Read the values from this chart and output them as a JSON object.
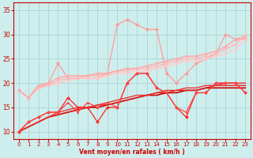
{
  "xlabel": "Vent moyen/en rafales ( km/h )",
  "xlim": [
    -0.5,
    23.5
  ],
  "ylim": [
    8.5,
    36.5
  ],
  "yticks": [
    10,
    15,
    20,
    25,
    30,
    35
  ],
  "xticks": [
    0,
    1,
    2,
    3,
    4,
    5,
    6,
    7,
    8,
    9,
    10,
    11,
    12,
    13,
    14,
    15,
    16,
    17,
    18,
    19,
    20,
    21,
    22,
    23
  ],
  "background_color": "#ceeeed",
  "grid_color": "#aad4d4",
  "series": [
    {
      "x": [
        0,
        1,
        2,
        3,
        4,
        5,
        6,
        7,
        8,
        9,
        10,
        11,
        12,
        13,
        14,
        15,
        16,
        17,
        18,
        19,
        20,
        21,
        22,
        23
      ],
      "y": [
        10,
        11,
        12,
        13,
        13.5,
        14,
        14.5,
        15,
        15,
        15.5,
        16,
        16.5,
        17,
        17.5,
        17.5,
        18,
        18,
        18.5,
        18.5,
        19,
        19,
        19,
        19,
        19
      ],
      "color": "#cc0000",
      "lw": 1.2,
      "marker": null,
      "ms": 0,
      "zorder": 4
    },
    {
      "x": [
        0,
        1,
        2,
        3,
        4,
        5,
        6,
        7,
        8,
        9,
        10,
        11,
        12,
        13,
        14,
        15,
        16,
        17,
        18,
        19,
        20,
        21,
        22,
        23
      ],
      "y": [
        10,
        11,
        12,
        13,
        13.5,
        14,
        14.5,
        15,
        15.5,
        15.5,
        16,
        16.5,
        17,
        17.5,
        18,
        18,
        18.5,
        18.5,
        18.5,
        19,
        19.5,
        19.5,
        19.5,
        19.5
      ],
      "color": "#dd2222",
      "lw": 1.0,
      "marker": null,
      "ms": 0,
      "zorder": 4
    },
    {
      "x": [
        0,
        1,
        2,
        3,
        4,
        5,
        6,
        7,
        8,
        9,
        10,
        11,
        12,
        13,
        14,
        15,
        16,
        17,
        18,
        19,
        20,
        21,
        22,
        23
      ],
      "y": [
        10,
        11,
        12,
        13,
        14,
        14.5,
        15,
        15,
        15.5,
        16,
        16.5,
        17,
        17.5,
        17.5,
        18,
        18.5,
        18.5,
        19,
        19,
        19.5,
        19.5,
        20,
        20,
        20
      ],
      "color": "#ee3333",
      "lw": 1.0,
      "marker": null,
      "ms": 0,
      "zorder": 4
    },
    {
      "x": [
        0,
        1,
        2,
        3,
        4,
        5,
        6,
        7,
        8,
        9,
        10,
        11,
        12,
        13,
        14,
        15,
        16,
        17,
        18,
        19,
        20,
        21,
        22,
        23
      ],
      "y": [
        10,
        12,
        13,
        14,
        14,
        17,
        15,
        15,
        12,
        15,
        15,
        20,
        22,
        22,
        19,
        18,
        15,
        13,
        18,
        18,
        20,
        20,
        20,
        18
      ],
      "color": "#ff2222",
      "lw": 0.9,
      "marker": "D",
      "ms": 2.0,
      "zorder": 5
    },
    {
      "x": [
        0,
        1,
        2,
        3,
        4,
        5,
        6,
        7,
        8,
        9,
        10,
        11,
        12,
        13,
        14,
        15,
        16,
        17,
        18,
        19,
        20,
        21,
        22,
        23
      ],
      "y": [
        10,
        12,
        13,
        14,
        14,
        16,
        14,
        16,
        15,
        16,
        15,
        20,
        22,
        22,
        19,
        18,
        15,
        14,
        18,
        18,
        20,
        20,
        20,
        18
      ],
      "color": "#ff4444",
      "lw": 0.9,
      "marker": "^",
      "ms": 2.0,
      "zorder": 5
    },
    {
      "x": [
        0,
        1,
        2,
        3,
        4,
        5,
        6,
        7,
        8,
        9,
        10,
        11,
        12,
        13,
        14,
        15,
        16,
        17,
        18,
        19,
        20,
        21,
        22,
        23
      ],
      "y": [
        18.5,
        17,
        19,
        19.5,
        20,
        20.5,
        21,
        21,
        21,
        21.5,
        22,
        22,
        22.5,
        22.5,
        23,
        23.5,
        24,
        24.5,
        24.5,
        25,
        25.5,
        26,
        27,
        29
      ],
      "color": "#ffcccc",
      "lw": 1.2,
      "marker": "D",
      "ms": 1.8,
      "zorder": 3
    },
    {
      "x": [
        0,
        1,
        2,
        3,
        4,
        5,
        6,
        7,
        8,
        9,
        10,
        11,
        12,
        13,
        14,
        15,
        16,
        17,
        18,
        19,
        20,
        21,
        22,
        23
      ],
      "y": [
        18.5,
        17,
        19,
        19.5,
        20.5,
        21,
        21,
        21.5,
        21.5,
        22,
        22.5,
        22.5,
        23,
        23,
        23.5,
        24,
        24.5,
        25,
        25,
        25.5,
        26,
        27,
        28,
        30
      ],
      "color": "#ffbbbb",
      "lw": 1.2,
      "marker": "D",
      "ms": 1.8,
      "zorder": 3
    },
    {
      "x": [
        0,
        1,
        2,
        3,
        4,
        5,
        6,
        7,
        8,
        9,
        10,
        11,
        12,
        13,
        14,
        15,
        16,
        17,
        18,
        19,
        20,
        21,
        22,
        23
      ],
      "y": [
        18.5,
        17,
        19.5,
        20,
        21,
        21.5,
        21.5,
        21.5,
        22,
        22,
        22.5,
        23,
        23,
        23.5,
        24,
        24.5,
        25,
        25.5,
        25.5,
        26,
        26.5,
        27.5,
        29,
        29.5
      ],
      "color": "#ffaaaa",
      "lw": 1.2,
      "marker": "D",
      "ms": 1.8,
      "zorder": 3
    },
    {
      "x": [
        0,
        1,
        2,
        3,
        4,
        5,
        6,
        7,
        8,
        9,
        10,
        11,
        12,
        13,
        14,
        15,
        16,
        17,
        18,
        19,
        20,
        21,
        22,
        23
      ],
      "y": [
        18.5,
        17,
        19,
        20,
        24,
        21,
        21,
        21,
        21,
        22,
        32,
        33,
        32,
        31,
        31,
        22,
        20,
        22,
        24,
        25,
        26,
        30,
        29,
        29
      ],
      "color": "#ff9999",
      "lw": 0.9,
      "marker": "D",
      "ms": 2.2,
      "zorder": 2
    }
  ]
}
